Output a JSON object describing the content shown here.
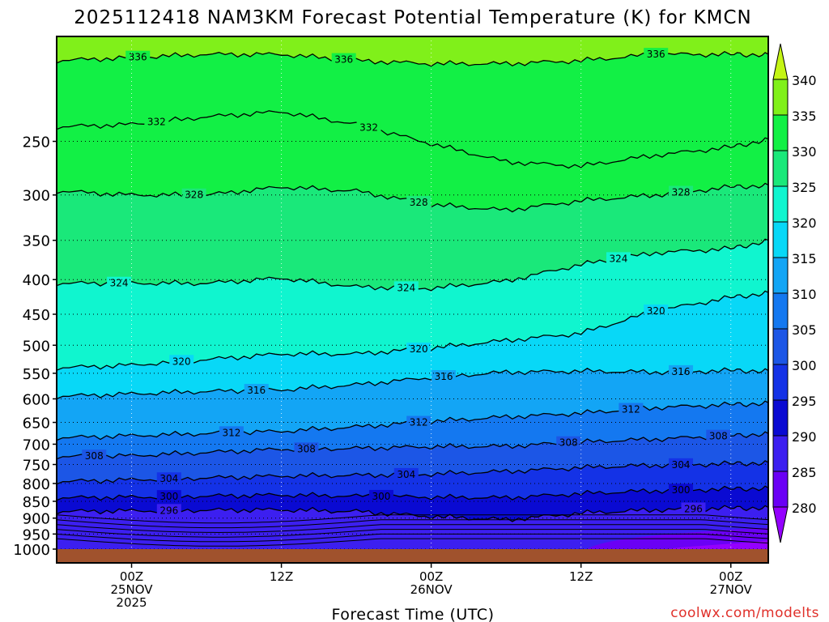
{
  "title": "2025112418 NAM3KM Forecast Potential Temperature (K) for KMCN",
  "xlabel": "Forecast Time (UTC)",
  "credit": "coolwx.com/modelts",
  "credit_color": "#e0302a",
  "chart_data": {
    "type": "filled-contour",
    "title": "2025112418 NAM3KM Forecast Potential Temperature (K) for KMCN",
    "xlabel": "Forecast Time (UTC)",
    "ylabel": "",
    "yscale": "log",
    "yinverted": true,
    "grid": true,
    "xlim": [
      -6,
      51
    ],
    "ylim": [
      1000,
      175
    ],
    "x_ticks": [
      {
        "value": 0,
        "labels": [
          "00Z",
          "25NOV",
          "2025"
        ]
      },
      {
        "value": 12,
        "labels": [
          "12Z"
        ]
      },
      {
        "value": 24,
        "labels": [
          "00Z",
          "26NOV"
        ]
      },
      {
        "value": 36,
        "labels": [
          "12Z"
        ]
      },
      {
        "value": 48,
        "labels": [
          "00Z",
          "27NOV"
        ]
      }
    ],
    "y_ticks": [
      250,
      300,
      350,
      400,
      450,
      500,
      550,
      600,
      650,
      700,
      750,
      800,
      850,
      900,
      950,
      1000
    ],
    "colorbar": {
      "levels": [
        280,
        285,
        290,
        295,
        300,
        305,
        310,
        315,
        320,
        325,
        330,
        335,
        340
      ],
      "colors": [
        "#9400ff",
        "#6a00f5",
        "#3c1ff0",
        "#0a0ad2",
        "#1432e6",
        "#1c56e6",
        "#1478f0",
        "#13a5f5",
        "#08d8f7",
        "#10f5cf",
        "#1ae87a",
        "#12f045",
        "#80f01a",
        "#c4f514"
      ]
    },
    "contour_labels": [
      336,
      332,
      328,
      324,
      320,
      316,
      312,
      308,
      304,
      300,
      296
    ],
    "series": [
      {
        "name": "336",
        "x": [
          -6,
          0,
          6,
          12,
          18,
          24,
          30,
          36,
          42,
          48,
          51
        ],
        "y": [
          190,
          188,
          186,
          186,
          190,
          192,
          192,
          190,
          186,
          186,
          186
        ]
      },
      {
        "name": "332",
        "x": [
          -6,
          0,
          6,
          12,
          18,
          24,
          30,
          36,
          42,
          48,
          51
        ],
        "y": [
          238,
          236,
          230,
          226,
          236,
          252,
          268,
          272,
          262,
          255,
          248
        ]
      },
      {
        "name": "328",
        "x": [
          -6,
          0,
          6,
          12,
          18,
          24,
          30,
          36,
          42,
          48,
          51
        ],
        "y": [
          296,
          300,
          300,
          292,
          296,
          310,
          316,
          306,
          300,
          292,
          290
        ]
      },
      {
        "name": "324",
        "x": [
          -6,
          0,
          6,
          12,
          18,
          24,
          30,
          36,
          42,
          48,
          51
        ],
        "y": [
          405,
          405,
          405,
          398,
          410,
          412,
          402,
          380,
          365,
          360,
          350
        ]
      },
      {
        "name": "320",
        "x": [
          -6,
          0,
          6,
          12,
          18,
          24,
          30,
          36,
          42,
          48,
          51
        ],
        "y": [
          540,
          535,
          525,
          515,
          515,
          505,
          492,
          480,
          445,
          425,
          418
        ]
      },
      {
        "name": "316",
        "x": [
          -6,
          0,
          6,
          12,
          18,
          24,
          30,
          36,
          42,
          48,
          51
        ],
        "y": [
          595,
          590,
          585,
          582,
          572,
          558,
          548,
          546,
          548,
          545,
          545
        ]
      },
      {
        "name": "312",
        "x": [
          -6,
          0,
          6,
          12,
          18,
          24,
          30,
          36,
          42,
          48,
          51
        ],
        "y": [
          685,
          680,
          675,
          670,
          660,
          648,
          638,
          630,
          618,
          612,
          608
        ]
      },
      {
        "name": "308",
        "x": [
          -6,
          0,
          6,
          12,
          18,
          24,
          30,
          36,
          42,
          48,
          51
        ],
        "y": [
          730,
          728,
          720,
          712,
          710,
          706,
          705,
          695,
          688,
          680,
          675
        ]
      },
      {
        "name": "304",
        "x": [
          -6,
          0,
          6,
          12,
          18,
          24,
          30,
          36,
          42,
          48,
          51
        ],
        "y": [
          795,
          790,
          785,
          780,
          778,
          775,
          768,
          758,
          752,
          748,
          745
        ]
      },
      {
        "name": "300",
        "x": [
          -6,
          0,
          6,
          12,
          18,
          24,
          30,
          36,
          42,
          48,
          51
        ],
        "y": [
          840,
          838,
          835,
          832,
          835,
          838,
          840,
          828,
          820,
          815,
          812
        ]
      },
      {
        "name": "296",
        "x": [
          -6,
          0,
          6,
          12,
          18,
          24,
          30,
          36,
          42,
          48,
          51
        ],
        "y": [
          880,
          878,
          876,
          875,
          880,
          895,
          905,
          885,
          875,
          870,
          868
        ]
      }
    ]
  }
}
